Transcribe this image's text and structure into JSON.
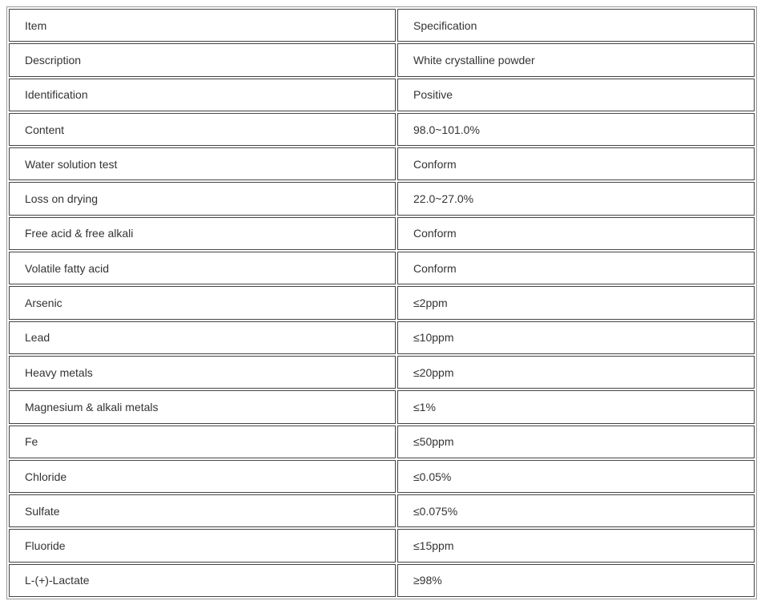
{
  "rows": [
    [
      "Item",
      "Specification"
    ],
    [
      "Description",
      "White crystalline powder"
    ],
    [
      "Identification",
      "Positive"
    ],
    [
      "Content",
      "98.0~101.0%"
    ],
    [
      "Water solution test",
      "Conform"
    ],
    [
      "Loss on drying",
      "22.0~27.0%"
    ],
    [
      "Free acid & free alkali",
      "Conform"
    ],
    [
      "Volatile fatty acid",
      "Conform"
    ],
    [
      "Arsenic",
      "≤2ppm"
    ],
    [
      "Lead",
      "≤10ppm"
    ],
    [
      "Heavy metals",
      "≤20ppm"
    ],
    [
      "Magnesium & alkali metals",
      "≤1%"
    ],
    [
      "Fe",
      "≤50ppm"
    ],
    [
      "Chloride",
      "≤0.05%"
    ],
    [
      "Sulfate",
      "≤0.075%"
    ],
    [
      "Fluoride",
      "≤15ppm"
    ],
    [
      "L-(+)-Lactate",
      "≥98%"
    ]
  ]
}
